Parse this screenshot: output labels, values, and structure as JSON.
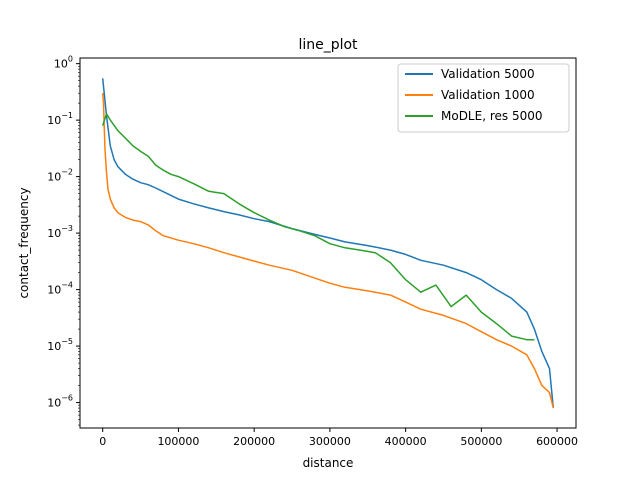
{
  "chart_data": {
    "type": "line",
    "title": "line_plot",
    "xlabel": "distance",
    "ylabel": "contact_frequency",
    "xlim": [
      -30000,
      625000
    ],
    "ylog": true,
    "ylim_exponent": [
      -6.45,
      0.1
    ],
    "xticks": [
      0,
      100000,
      200000,
      300000,
      400000,
      500000,
      600000
    ],
    "xtick_labels": [
      "0",
      "100000",
      "200000",
      "300000",
      "400000",
      "500000",
      "600000"
    ],
    "yticks_exponent": [
      -6,
      -5,
      -4,
      -3,
      -2,
      -1,
      0
    ],
    "ytick_base": "10",
    "ytick_exponent_labels": [
      "−6",
      "−5",
      "−4",
      "−3",
      "−2",
      "−1",
      "0"
    ],
    "grid": false,
    "legend_position": "top-right",
    "series": [
      {
        "name": "Validation 5000",
        "color": "#1f77b4",
        "x": [
          0,
          5000,
          10000,
          15000,
          20000,
          30000,
          40000,
          50000,
          60000,
          70000,
          80000,
          100000,
          120000,
          140000,
          160000,
          180000,
          200000,
          220000,
          250000,
          280000,
          300000,
          320000,
          350000,
          380000,
          400000,
          420000,
          450000,
          480000,
          500000,
          520000,
          540000,
          560000,
          570000,
          580000,
          590000,
          595000
        ],
        "y": [
          0.55,
          0.12,
          0.035,
          0.02,
          0.015,
          0.011,
          0.009,
          0.0078,
          0.0072,
          0.0063,
          0.0054,
          0.004,
          0.0033,
          0.0028,
          0.0024,
          0.0021,
          0.0018,
          0.0016,
          0.0012,
          0.00095,
          0.00082,
          0.0007,
          0.0006,
          0.0005,
          0.00042,
          0.00033,
          0.00027,
          0.0002,
          0.00015,
          0.0001,
          7e-05,
          4e-05,
          2e-05,
          8e-06,
          4e-06,
          8e-07
        ]
      },
      {
        "name": "Validation 1000",
        "color": "#ff7f0e",
        "x": [
          0,
          1000,
          2000,
          3000,
          5000,
          7000,
          10000,
          15000,
          20000,
          30000,
          40000,
          50000,
          60000,
          70000,
          80000,
          100000,
          120000,
          140000,
          160000,
          180000,
          200000,
          220000,
          250000,
          280000,
          300000,
          320000,
          350000,
          380000,
          400000,
          420000,
          450000,
          480000,
          500000,
          520000,
          540000,
          560000,
          570000,
          580000,
          590000,
          595000
        ],
        "y": [
          0.3,
          0.2,
          0.08,
          0.03,
          0.012,
          0.006,
          0.004,
          0.0028,
          0.0023,
          0.0019,
          0.0017,
          0.0016,
          0.0014,
          0.0011,
          0.0009,
          0.00075,
          0.00065,
          0.00055,
          0.00045,
          0.00038,
          0.00032,
          0.00027,
          0.00022,
          0.00016,
          0.00013,
          0.00011,
          9.5e-05,
          8e-05,
          6e-05,
          4.5e-05,
          3.5e-05,
          2.5e-05,
          1.8e-05,
          1.3e-05,
          1e-05,
          7e-06,
          4e-06,
          2e-06,
          1.5e-06,
          8e-07
        ]
      },
      {
        "name": "MoDLE, res 5000",
        "color": "#2ca02c",
        "x": [
          0,
          5000,
          10000,
          20000,
          30000,
          40000,
          50000,
          60000,
          70000,
          80000,
          90000,
          100000,
          120000,
          140000,
          160000,
          180000,
          200000,
          220000,
          240000,
          260000,
          280000,
          300000,
          320000,
          340000,
          360000,
          380000,
          400000,
          420000,
          440000,
          460000,
          480000,
          500000,
          520000,
          540000,
          560000,
          570000
        ],
        "y": [
          0.08,
          0.13,
          0.1,
          0.065,
          0.048,
          0.035,
          0.028,
          0.023,
          0.016,
          0.013,
          0.011,
          0.01,
          0.0075,
          0.0055,
          0.005,
          0.0033,
          0.0023,
          0.0017,
          0.0013,
          0.0011,
          0.0009,
          0.00065,
          0.00055,
          0.0005,
          0.00045,
          0.0003,
          0.00015,
          9e-05,
          0.00012,
          5e-05,
          8e-05,
          4e-05,
          2.5e-05,
          1.5e-05,
          1.3e-05,
          1.3e-05
        ]
      }
    ]
  }
}
